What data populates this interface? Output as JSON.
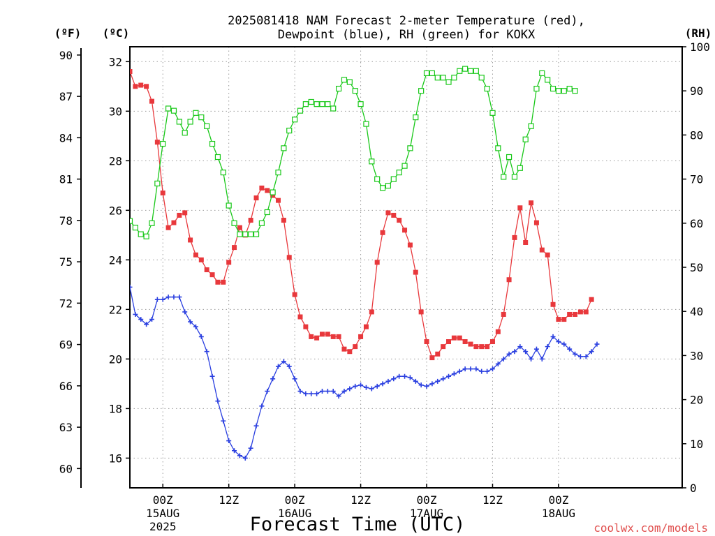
{
  "title_line1": "2025081418 NAM Forecast 2-meter Temperature (red),",
  "title_line2": "Dewpoint (blue), RH (green) for KOKX",
  "unit_f": "(ºF)",
  "unit_c": "(ºC)",
  "unit_rh": "(RH)",
  "xlabel": "Forecast Time (UTC)",
  "credit": "coolwx.com/models",
  "colors": {
    "temp": "#e8383c",
    "dewpoint": "#2a3fe0",
    "rh": "#19c819"
  },
  "chart_data": {
    "type": "line",
    "x_unit": "hours from 2025-08-14 18Z",
    "xlim": [
      0,
      100.5
    ],
    "ylim_c": [
      14.8,
      32.6
    ],
    "ylim_f": [
      58.6,
      90.6
    ],
    "ylim_rh": [
      0,
      100
    ],
    "f_ticks": [
      "60",
      "63",
      "66",
      "69",
      "72",
      "75",
      "78",
      "81",
      "84",
      "87",
      "90"
    ],
    "c_ticks": [
      "16",
      "18",
      "20",
      "22",
      "24",
      "26",
      "28",
      "30",
      "32"
    ],
    "rh_ticks": [
      "0",
      "10",
      "20",
      "30",
      "40",
      "50",
      "60",
      "70",
      "80",
      "90",
      "100"
    ],
    "x_ticks": [
      {
        "hour": 6,
        "l1": "00Z",
        "l2": "15AUG",
        "l3": "2025"
      },
      {
        "hour": 18,
        "l1": "12Z",
        "l2": "",
        "l3": ""
      },
      {
        "hour": 30,
        "l1": "00Z",
        "l2": "16AUG",
        "l3": ""
      },
      {
        "hour": 42,
        "l1": "12Z",
        "l2": "",
        "l3": ""
      },
      {
        "hour": 54,
        "l1": "00Z",
        "l2": "17AUG",
        "l3": ""
      },
      {
        "hour": 66,
        "l1": "12Z",
        "l2": "",
        "l3": ""
      },
      {
        "hour": 78,
        "l1": "00Z",
        "l2": "18AUG",
        "l3": ""
      }
    ],
    "series": [
      {
        "name": "Temperature",
        "key": "temp",
        "points": [
          [
            0,
            31.6
          ],
          [
            1,
            31.0
          ],
          [
            2,
            31.05
          ],
          [
            3,
            31.0
          ],
          [
            4,
            30.4
          ],
          [
            5,
            28.75
          ],
          [
            6,
            26.7
          ],
          [
            7,
            25.3
          ],
          [
            8,
            25.5
          ],
          [
            9,
            25.8
          ],
          [
            10,
            25.9
          ],
          [
            11,
            24.8
          ],
          [
            12,
            24.2
          ],
          [
            13,
            24.0
          ],
          [
            14,
            23.6
          ],
          [
            15,
            23.4
          ],
          [
            16,
            23.1
          ],
          [
            17,
            23.1
          ],
          [
            18,
            23.9
          ],
          [
            19,
            24.5
          ],
          [
            20,
            25.3
          ],
          [
            21,
            25.0
          ],
          [
            22,
            25.6
          ],
          [
            23,
            26.5
          ],
          [
            24,
            26.9
          ],
          [
            25,
            26.8
          ],
          [
            26,
            26.6
          ],
          [
            27,
            26.4
          ],
          [
            28,
            25.6
          ],
          [
            29,
            24.1
          ],
          [
            30,
            22.6
          ],
          [
            31,
            21.7
          ],
          [
            32,
            21.3
          ],
          [
            33,
            20.9
          ],
          [
            34,
            20.85
          ],
          [
            35,
            21.0
          ],
          [
            36,
            21.0
          ],
          [
            37,
            20.9
          ],
          [
            38,
            20.9
          ],
          [
            39,
            20.4
          ],
          [
            40,
            20.3
          ],
          [
            41,
            20.5
          ],
          [
            42,
            20.9
          ],
          [
            43,
            21.3
          ],
          [
            44,
            21.9
          ],
          [
            45,
            23.9
          ],
          [
            46,
            25.1
          ],
          [
            47,
            25.9
          ],
          [
            48,
            25.8
          ],
          [
            49,
            25.6
          ],
          [
            50,
            25.2
          ],
          [
            51,
            24.6
          ],
          [
            52,
            23.5
          ],
          [
            53,
            21.9
          ],
          [
            54,
            20.7
          ],
          [
            55,
            20.05
          ],
          [
            56,
            20.2
          ],
          [
            57,
            20.5
          ],
          [
            58,
            20.7
          ],
          [
            59,
            20.85
          ],
          [
            60,
            20.85
          ],
          [
            61,
            20.7
          ],
          [
            62,
            20.6
          ],
          [
            63,
            20.5
          ],
          [
            64,
            20.5
          ],
          [
            65,
            20.5
          ],
          [
            66,
            20.7
          ],
          [
            67,
            21.1
          ],
          [
            68,
            21.8
          ],
          [
            69,
            23.2
          ],
          [
            70,
            24.9
          ],
          [
            71,
            26.1
          ],
          [
            72,
            24.7
          ],
          [
            73,
            26.3
          ],
          [
            74,
            25.5
          ],
          [
            75,
            24.4
          ],
          [
            76,
            24.2
          ],
          [
            77,
            22.2
          ],
          [
            78,
            21.6
          ],
          [
            79,
            21.6
          ],
          [
            80,
            21.8
          ],
          [
            81,
            21.8
          ],
          [
            82,
            21.9
          ],
          [
            83,
            21.9
          ],
          [
            84,
            22.4
          ]
        ]
      },
      {
        "name": "Dewpoint",
        "key": "dewpoint",
        "points": [
          [
            0,
            22.9
          ],
          [
            1,
            21.8
          ],
          [
            2,
            21.6
          ],
          [
            3,
            21.4
          ],
          [
            4,
            21.6
          ],
          [
            5,
            22.4
          ],
          [
            6,
            22.4
          ],
          [
            7,
            22.5
          ],
          [
            8,
            22.5
          ],
          [
            9,
            22.5
          ],
          [
            10,
            21.9
          ],
          [
            11,
            21.5
          ],
          [
            12,
            21.3
          ],
          [
            13,
            20.9
          ],
          [
            14,
            20.3
          ],
          [
            15,
            19.3
          ],
          [
            16,
            18.3
          ],
          [
            17,
            17.5
          ],
          [
            18,
            16.7
          ],
          [
            19,
            16.3
          ],
          [
            20,
            16.1
          ],
          [
            21,
            16.0
          ],
          [
            22,
            16.4
          ],
          [
            23,
            17.3
          ],
          [
            24,
            18.1
          ],
          [
            25,
            18.7
          ],
          [
            26,
            19.2
          ],
          [
            27,
            19.7
          ],
          [
            28,
            19.9
          ],
          [
            29,
            19.7
          ],
          [
            30,
            19.2
          ],
          [
            31,
            18.7
          ],
          [
            32,
            18.6
          ],
          [
            33,
            18.6
          ],
          [
            34,
            18.6
          ],
          [
            35,
            18.7
          ],
          [
            36,
            18.7
          ],
          [
            37,
            18.7
          ],
          [
            38,
            18.5
          ],
          [
            39,
            18.7
          ],
          [
            40,
            18.8
          ],
          [
            41,
            18.9
          ],
          [
            42,
            18.95
          ],
          [
            43,
            18.85
          ],
          [
            44,
            18.8
          ],
          [
            45,
            18.9
          ],
          [
            46,
            19.0
          ],
          [
            47,
            19.1
          ],
          [
            48,
            19.2
          ],
          [
            49,
            19.3
          ],
          [
            50,
            19.3
          ],
          [
            51,
            19.25
          ],
          [
            52,
            19.1
          ],
          [
            53,
            18.95
          ],
          [
            54,
            18.9
          ],
          [
            55,
            19.0
          ],
          [
            56,
            19.1
          ],
          [
            57,
            19.2
          ],
          [
            58,
            19.3
          ],
          [
            59,
            19.4
          ],
          [
            60,
            19.5
          ],
          [
            61,
            19.6
          ],
          [
            62,
            19.6
          ],
          [
            63,
            19.6
          ],
          [
            64,
            19.5
          ],
          [
            65,
            19.5
          ],
          [
            66,
            19.6
          ],
          [
            67,
            19.8
          ],
          [
            68,
            20.0
          ],
          [
            69,
            20.2
          ],
          [
            70,
            20.3
          ],
          [
            71,
            20.5
          ],
          [
            72,
            20.3
          ],
          [
            73,
            20.0
          ],
          [
            74,
            20.4
          ],
          [
            75,
            20.0
          ],
          [
            76,
            20.5
          ],
          [
            77,
            20.9
          ],
          [
            78,
            20.7
          ],
          [
            79,
            20.6
          ],
          [
            80,
            20.4
          ],
          [
            81,
            20.2
          ],
          [
            82,
            20.1
          ],
          [
            83,
            20.1
          ],
          [
            84,
            20.3
          ],
          [
            85,
            20.6
          ]
        ]
      },
      {
        "name": "RH",
        "key": "rh",
        "points": [
          [
            0,
            60.5
          ],
          [
            1,
            59
          ],
          [
            2,
            57.5
          ],
          [
            3,
            57
          ],
          [
            4,
            60
          ],
          [
            5,
            69
          ],
          [
            6,
            78
          ],
          [
            7,
            86
          ],
          [
            8,
            85.5
          ],
          [
            9,
            83
          ],
          [
            10,
            80.5
          ],
          [
            11,
            83
          ],
          [
            12,
            85
          ],
          [
            13,
            84
          ],
          [
            14,
            82
          ],
          [
            15,
            78
          ],
          [
            16,
            75
          ],
          [
            17,
            71.5
          ],
          [
            18,
            64
          ],
          [
            19,
            60
          ],
          [
            20,
            57.5
          ],
          [
            21,
            57.5
          ],
          [
            22,
            57.5
          ],
          [
            23,
            57.5
          ],
          [
            24,
            60
          ],
          [
            25,
            62.5
          ],
          [
            26,
            67
          ],
          [
            27,
            71.5
          ],
          [
            28,
            77
          ],
          [
            29,
            81
          ],
          [
            30,
            83.5
          ],
          [
            31,
            85.5
          ],
          [
            32,
            87
          ],
          [
            33,
            87.5
          ],
          [
            34,
            87
          ],
          [
            35,
            87
          ],
          [
            36,
            87
          ],
          [
            37,
            86
          ],
          [
            38,
            90.5
          ],
          [
            39,
            92.5
          ],
          [
            40,
            92
          ],
          [
            41,
            90
          ],
          [
            42,
            87
          ],
          [
            43,
            82.5
          ],
          [
            44,
            74
          ],
          [
            45,
            70
          ],
          [
            46,
            68
          ],
          [
            47,
            68.5
          ],
          [
            48,
            70
          ],
          [
            49,
            71.5
          ],
          [
            50,
            73
          ],
          [
            51,
            77
          ],
          [
            52,
            84
          ],
          [
            53,
            90
          ],
          [
            54,
            94
          ],
          [
            55,
            94
          ],
          [
            56,
            93
          ],
          [
            57,
            93
          ],
          [
            58,
            92
          ],
          [
            59,
            93
          ],
          [
            60,
            94.5
          ],
          [
            61,
            95
          ],
          [
            62,
            94.5
          ],
          [
            63,
            94.5
          ],
          [
            64,
            93
          ],
          [
            65,
            90.5
          ],
          [
            66,
            85
          ],
          [
            67,
            77
          ],
          [
            68,
            70.5
          ],
          [
            69,
            75
          ],
          [
            70,
            70.5
          ],
          [
            71,
            72.5
          ],
          [
            72,
            79
          ],
          [
            73,
            82
          ],
          [
            74,
            90.5
          ],
          [
            75,
            94
          ],
          [
            76,
            92.5
          ],
          [
            77,
            90.5
          ],
          [
            78,
            90
          ],
          [
            79,
            90
          ],
          [
            80,
            90.5
          ],
          [
            81,
            90
          ]
        ]
      }
    ]
  }
}
